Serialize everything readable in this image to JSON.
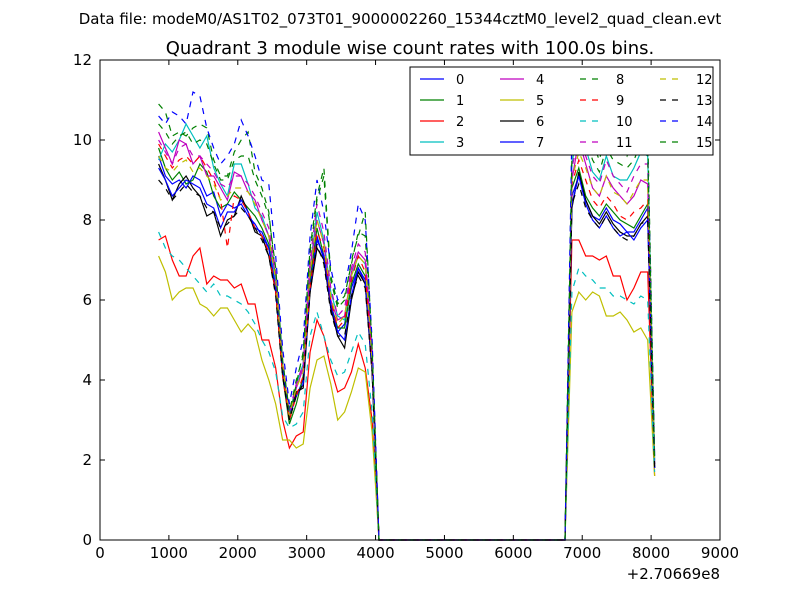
{
  "suptitle": "Data file: modeM0/AS1T02_073T01_9000002260_15344cztM0_level2_quad_clean.evt",
  "chart_data": {
    "type": "line",
    "title": "Quadrant 3 module wise count rates with 100.0s bins.",
    "xlabel": "",
    "ylabel": "",
    "xlim": [
      0,
      9000
    ],
    "ylim": [
      0,
      12
    ],
    "x_offset_label": "+2.70669e8",
    "x_ticks": [
      "0",
      "1000",
      "2000",
      "3000",
      "4000",
      "5000",
      "6000",
      "7000",
      "8000",
      "9000"
    ],
    "y_ticks": [
      "0",
      "2",
      "4",
      "6",
      "8",
      "10",
      "12"
    ],
    "grid": false,
    "legend_position": "top-right",
    "x": [
      850,
      950,
      1050,
      1150,
      1250,
      1350,
      1450,
      1550,
      1650,
      1750,
      1850,
      1950,
      2050,
      2150,
      2250,
      2350,
      2450,
      2550,
      2650,
      2750,
      2850,
      2950,
      3050,
      3150,
      3250,
      3350,
      3450,
      3550,
      3650,
      3750,
      3850,
      3950,
      4050,
      6750,
      6850,
      6950,
      7050,
      7150,
      7250,
      7350,
      7450,
      7550,
      7650,
      7750,
      7850,
      7950,
      8050
    ],
    "series": [
      {
        "name": "0",
        "color": "#0000ff",
        "style": "solid",
        "values": [
          9.6,
          9.1,
          8.9,
          9.0,
          8.8,
          9.1,
          9.0,
          8.6,
          8.7,
          8.1,
          8.4,
          8.3,
          8.4,
          8.1,
          7.9,
          7.6,
          7.3,
          6.3,
          4.2,
          3.3,
          3.6,
          4.0,
          6.3,
          7.6,
          7.0,
          5.8,
          5.2,
          5.4,
          6.3,
          6.8,
          6.4,
          4.2,
          0.0,
          0.0,
          8.6,
          9.1,
          8.5,
          8.1,
          8.0,
          8.3,
          8.0,
          7.9,
          7.7,
          7.7,
          8.0,
          8.3,
          1.8
        ]
      },
      {
        "name": "1",
        "color": "#008000",
        "style": "solid",
        "values": [
          9.8,
          9.3,
          9.0,
          9.2,
          8.9,
          9.0,
          9.4,
          9.2,
          8.6,
          8.3,
          8.4,
          8.7,
          8.5,
          8.3,
          8.1,
          7.8,
          7.4,
          6.2,
          4.1,
          2.9,
          3.4,
          4.1,
          6.5,
          7.8,
          7.1,
          5.9,
          5.3,
          5.3,
          6.4,
          6.9,
          6.6,
          4.4,
          0.0,
          0.0,
          8.8,
          9.3,
          8.6,
          8.3,
          8.1,
          8.4,
          8.2,
          8.0,
          7.9,
          7.8,
          8.1,
          8.4,
          1.9
        ]
      },
      {
        "name": "2",
        "color": "#ff0000",
        "style": "solid",
        "values": [
          7.5,
          7.6,
          7.0,
          6.6,
          6.6,
          7.1,
          7.3,
          6.4,
          6.6,
          6.5,
          6.5,
          6.3,
          6.4,
          5.9,
          5.9,
          5.0,
          5.0,
          4.3,
          3.0,
          2.3,
          2.6,
          2.7,
          4.7,
          5.5,
          5.1,
          4.3,
          3.7,
          3.8,
          4.2,
          4.9,
          4.3,
          3.0,
          0.0,
          0.0,
          7.5,
          7.5,
          7.1,
          7.1,
          7.0,
          7.1,
          6.6,
          6.6,
          6.0,
          6.3,
          6.7,
          6.7,
          1.6
        ]
      },
      {
        "name": "3",
        "color": "#00bfbf",
        "style": "solid",
        "values": [
          9.5,
          9.9,
          9.7,
          10.0,
          10.4,
          10.1,
          9.8,
          10.1,
          9.3,
          8.9,
          8.6,
          9.4,
          9.4,
          8.9,
          8.3,
          8.1,
          7.6,
          6.4,
          4.3,
          3.1,
          3.9,
          4.4,
          6.8,
          8.2,
          7.5,
          6.2,
          5.6,
          5.5,
          6.6,
          7.1,
          6.9,
          4.5,
          0.0,
          0.0,
          9.4,
          10.4,
          9.8,
          9.2,
          9.0,
          9.6,
          9.1,
          9.0,
          9.0,
          9.3,
          9.7,
          9.6,
          2.0
        ]
      },
      {
        "name": "4",
        "color": "#bf00bf",
        "style": "solid",
        "values": [
          10.2,
          9.8,
          9.4,
          10.0,
          9.9,
          9.4,
          9.6,
          9.1,
          9.1,
          8.8,
          8.5,
          9.2,
          9.1,
          8.7,
          8.5,
          8.0,
          7.6,
          6.6,
          4.4,
          3.1,
          3.8,
          4.3,
          6.8,
          8.0,
          7.4,
          6.0,
          5.5,
          5.6,
          6.7,
          7.2,
          7.0,
          4.6,
          0.0,
          0.0,
          9.0,
          10.0,
          9.4,
          8.8,
          8.6,
          9.1,
          8.8,
          8.6,
          8.4,
          8.6,
          9.0,
          8.9,
          1.9
        ]
      },
      {
        "name": "5",
        "color": "#bfbf00",
        "style": "solid",
        "values": [
          7.1,
          6.7,
          6.0,
          6.2,
          6.3,
          6.3,
          5.9,
          5.8,
          5.6,
          5.8,
          5.8,
          5.5,
          5.2,
          5.4,
          5.2,
          4.5,
          4.0,
          3.4,
          2.5,
          2.5,
          2.3,
          2.4,
          3.8,
          4.5,
          4.6,
          3.9,
          3.0,
          3.2,
          3.7,
          4.3,
          4.2,
          2.7,
          0.0,
          0.0,
          5.7,
          6.2,
          6.0,
          6.2,
          6.1,
          5.6,
          5.6,
          5.7,
          5.5,
          5.2,
          5.3,
          5.0,
          1.6
        ]
      },
      {
        "name": "6",
        "color": "#000000",
        "style": "solid",
        "values": [
          9.4,
          9.0,
          8.5,
          8.9,
          9.1,
          8.8,
          8.6,
          8.1,
          8.2,
          7.6,
          8.0,
          8.1,
          8.6,
          8.2,
          7.7,
          7.6,
          7.1,
          6.2,
          4.2,
          3.0,
          3.7,
          3.8,
          6.2,
          7.3,
          7.0,
          5.8,
          5.1,
          4.8,
          6.0,
          6.7,
          6.4,
          4.2,
          0.0,
          0.0,
          8.3,
          9.2,
          8.5,
          8.1,
          7.9,
          8.2,
          7.9,
          7.7,
          7.6,
          7.6,
          7.9,
          8.1,
          1.8
        ]
      },
      {
        "name": "7",
        "color": "#0000ff",
        "style": "solid",
        "values": [
          9.3,
          9.0,
          8.6,
          8.8,
          9.0,
          8.9,
          8.8,
          8.4,
          8.3,
          7.8,
          8.2,
          8.2,
          8.5,
          8.2,
          7.8,
          7.7,
          7.3,
          6.3,
          4.3,
          3.1,
          3.6,
          3.9,
          6.3,
          7.5,
          7.1,
          5.9,
          5.2,
          5.0,
          6.1,
          6.8,
          6.5,
          4.3,
          0.0,
          0.0,
          8.4,
          9.1,
          8.4,
          8.0,
          7.8,
          8.1,
          7.8,
          7.6,
          7.7,
          7.5,
          7.8,
          8.0,
          1.8
        ]
      },
      {
        "name": "8",
        "color": "#008000",
        "style": "dashed",
        "values": [
          10.9,
          10.7,
          10.1,
          10.2,
          10.1,
          10.3,
          10.4,
          10.3,
          9.5,
          9.1,
          9.1,
          9.7,
          10.0,
          10.2,
          9.2,
          8.8,
          8.2,
          6.6,
          4.4,
          3.0,
          3.9,
          4.7,
          7.3,
          8.6,
          9.3,
          6.6,
          5.9,
          6.1,
          6.9,
          7.7,
          7.6,
          4.9,
          0.0,
          0.0,
          9.9,
          10.6,
          10.4,
          9.9,
          9.5,
          10.2,
          9.9,
          9.9,
          9.6,
          10.0,
          10.4,
          10.2,
          2.1
        ]
      },
      {
        "name": "9",
        "color": "#ff0000",
        "style": "dashed",
        "values": [
          9.9,
          9.6,
          9.3,
          9.5,
          9.6,
          9.4,
          9.6,
          9.3,
          9.0,
          8.5,
          7.3,
          8.6,
          8.5,
          8.2,
          7.8,
          7.6,
          7.2,
          6.2,
          4.1,
          3.0,
          3.6,
          4.1,
          6.3,
          7.7,
          7.3,
          6.0,
          5.3,
          5.5,
          6.5,
          7.1,
          6.7,
          4.3,
          0.0,
          0.0,
          8.9,
          9.5,
          9.0,
          8.5,
          8.3,
          8.6,
          8.4,
          8.1,
          8.0,
          8.2,
          8.3,
          8.5,
          1.9
        ]
      },
      {
        "name": "10",
        "color": "#00bfbf",
        "style": "dashed",
        "values": [
          7.7,
          7.3,
          7.1,
          7.0,
          6.8,
          6.6,
          6.4,
          6.2,
          6.4,
          6.1,
          6.1,
          6.0,
          5.9,
          5.7,
          5.4,
          5.0,
          4.7,
          4.2,
          3.1,
          2.8,
          2.9,
          3.2,
          5.1,
          5.7,
          5.1,
          4.5,
          4.1,
          4.2,
          4.7,
          5.2,
          4.9,
          3.2,
          0.0,
          0.0,
          6.2,
          6.8,
          6.6,
          6.5,
          6.3,
          6.3,
          6.1,
          6.1,
          6.0,
          5.9,
          6.1,
          6.0,
          1.7
        ]
      },
      {
        "name": "11",
        "color": "#bf00bf",
        "style": "dashed",
        "values": [
          10.0,
          9.7,
          9.4,
          9.8,
          9.9,
          9.6,
          9.6,
          9.4,
          9.2,
          8.9,
          8.8,
          9.1,
          9.1,
          8.9,
          8.6,
          8.2,
          7.8,
          6.7,
          4.5,
          3.2,
          3.9,
          4.4,
          7.0,
          8.4,
          7.7,
          6.3,
          5.6,
          5.8,
          6.8,
          7.4,
          7.2,
          4.7,
          0.0,
          0.0,
          9.3,
          10.1,
          9.6,
          9.1,
          8.9,
          9.5,
          9.1,
          8.9,
          8.7,
          9.1,
          9.4,
          9.4,
          2.0
        ]
      },
      {
        "name": "12",
        "color": "#bfbf00",
        "style": "dashed",
        "values": [
          9.6,
          9.3,
          9.2,
          9.4,
          9.5,
          9.2,
          9.3,
          9.1,
          8.9,
          8.5,
          8.6,
          8.8,
          8.8,
          8.7,
          8.4,
          8.0,
          7.6,
          6.5,
          4.4,
          3.1,
          3.8,
          4.2,
          6.7,
          8.0,
          7.4,
          6.1,
          5.4,
          5.6,
          6.6,
          7.1,
          6.9,
          4.5,
          0.0,
          0.0,
          9.0,
          9.7,
          9.3,
          8.8,
          8.6,
          9.1,
          8.7,
          8.6,
          8.4,
          8.7,
          9.0,
          9.0,
          1.9
        ]
      },
      {
        "name": "13",
        "color": "#000000",
        "style": "dashed",
        "values": [
          9.0,
          8.8,
          8.5,
          8.7,
          8.9,
          8.7,
          8.6,
          8.3,
          8.2,
          7.8,
          7.9,
          8.1,
          8.3,
          8.1,
          7.8,
          7.5,
          7.1,
          6.1,
          4.1,
          3.0,
          3.6,
          3.9,
          6.2,
          7.4,
          6.9,
          5.7,
          5.1,
          5.1,
          6.1,
          6.6,
          6.3,
          4.2,
          0.0,
          0.0,
          8.4,
          8.9,
          8.3,
          8.0,
          7.8,
          8.1,
          7.8,
          7.6,
          7.5,
          7.6,
          7.9,
          8.0,
          1.8
        ]
      },
      {
        "name": "14",
        "color": "#0000ff",
        "style": "dashed",
        "values": [
          10.6,
          10.4,
          10.7,
          10.6,
          10.4,
          11.2,
          11.1,
          10.3,
          9.8,
          9.4,
          9.6,
          9.9,
          10.5,
          10.1,
          9.6,
          9.0,
          8.9,
          7.1,
          4.8,
          3.4,
          4.3,
          5.0,
          7.6,
          9.0,
          8.2,
          6.8,
          6.0,
          6.3,
          7.2,
          8.4,
          8.0,
          5.0,
          0.0,
          0.0,
          10.2,
          10.8,
          10.6,
          10.0,
          9.7,
          10.3,
          10.0,
          9.9,
          9.7,
          9.8,
          10.2,
          9.8,
          2.1
        ]
      },
      {
        "name": "15",
        "color": "#008000",
        "style": "dashed",
        "values": [
          10.4,
          10.2,
          9.9,
          10.1,
          10.2,
          9.9,
          10.0,
          9.9,
          9.4,
          9.0,
          9.0,
          9.5,
          9.6,
          9.6,
          9.0,
          8.6,
          8.1,
          6.8,
          4.5,
          3.2,
          4.0,
          4.6,
          7.2,
          8.5,
          9.1,
          6.5,
          5.8,
          6.0,
          7.0,
          7.6,
          8.2,
          4.8,
          0.0,
          0.0,
          9.6,
          10.3,
          10.0,
          9.5,
          9.2,
          9.8,
          9.5,
          9.4,
          9.3,
          9.5,
          9.9,
          9.7,
          2.0
        ]
      }
    ]
  }
}
